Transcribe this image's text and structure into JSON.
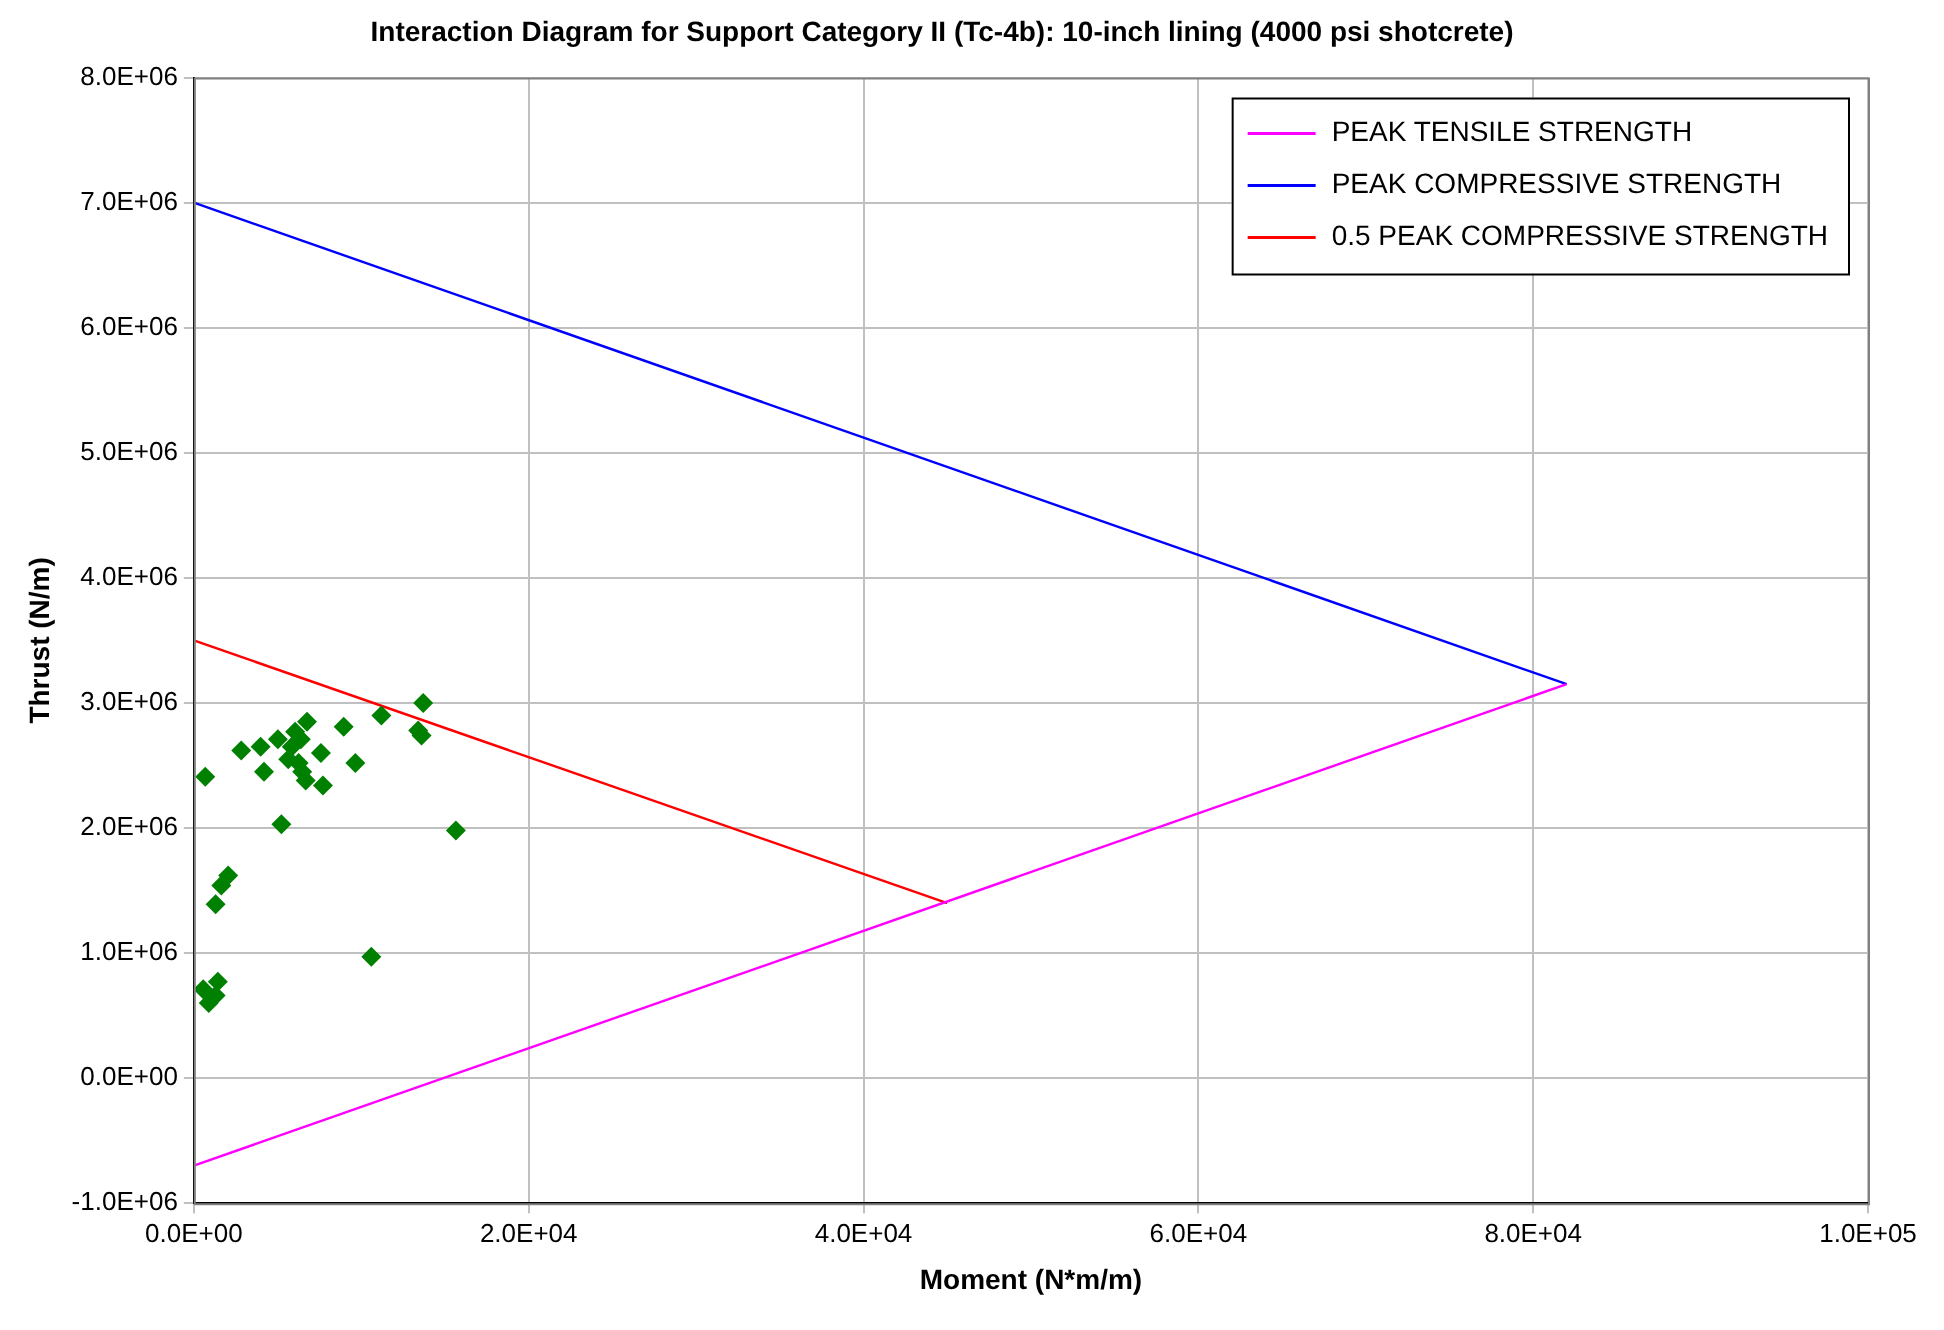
{
  "chart_data": {
    "type": "line",
    "title": "Interaction Diagram for Support Category II (Tc-4b): 10-inch lining (4000 psi shotcrete)",
    "xlabel": "Moment (N*m/m)",
    "ylabel": "Thrust (N/m)",
    "xlim": [
      0,
      100000
    ],
    "xticks": [
      {
        "value": 0,
        "label": "0.0E+00"
      },
      {
        "value": 20000,
        "label": "2.0E+04"
      },
      {
        "value": 40000,
        "label": "4.0E+04"
      },
      {
        "value": 60000,
        "label": "6.0E+04"
      },
      {
        "value": 80000,
        "label": "8.0E+04"
      },
      {
        "value": 100000,
        "label": "1.0E+05"
      }
    ],
    "ylim": [
      -1000000,
      8000000
    ],
    "yticks": [
      {
        "value": -1000000,
        "label": "-1.0E+06"
      },
      {
        "value": 0,
        "label": "0.0E+00"
      },
      {
        "value": 1000000,
        "label": "1.0E+06"
      },
      {
        "value": 2000000,
        "label": "2.0E+06"
      },
      {
        "value": 3000000,
        "label": "3.0E+06"
      },
      {
        "value": 4000000,
        "label": "4.0E+06"
      },
      {
        "value": 5000000,
        "label": "5.0E+06"
      },
      {
        "value": 6000000,
        "label": "6.0E+06"
      },
      {
        "value": 7000000,
        "label": "7.0E+06"
      },
      {
        "value": 8000000,
        "label": "8.0E+06"
      }
    ],
    "grid": true,
    "legend": "top right",
    "line_style": "solid",
    "series": [
      {
        "name": "PEAK TENSILE STRENGTH",
        "marker": "none",
        "color": "#ff00ff",
        "x": [
          0,
          82000
        ],
        "values": [
          -700000,
          3150000
        ]
      },
      {
        "name": "PEAK COMPRESSIVE STRENGTH",
        "marker": "none",
        "color": "#0000ff",
        "x": [
          0,
          82000
        ],
        "values": [
          7000000,
          3150000
        ]
      },
      {
        "name": "0.5 PEAK COMPRESSIVE STRENGTH",
        "marker": "none",
        "color": "#ff0000",
        "x": [
          0,
          45000
        ],
        "values": [
          3500000,
          1400000
        ]
      },
      {
        "type": "scatter",
        "marker": "diamond",
        "color": "#008000",
        "x": [
          13700,
          11200,
          8950,
          13400,
          13600,
          6760,
          6050,
          5020,
          3990,
          2830,
          6390,
          5850,
          5640,
          6260,
          6470,
          6680,
          7590,
          9650,
          7710,
          4190,
          680,
          5230,
          15650,
          2050,
          1640,
          1300,
          10600,
          1430,
          560,
          1300,
          890
        ],
        "values": [
          3000000,
          2900000,
          2810000,
          2780000,
          2740000,
          2850000,
          2770000,
          2710000,
          2650000,
          2620000,
          2710000,
          2650000,
          2550000,
          2520000,
          2450000,
          2380000,
          2600000,
          2520000,
          2340000,
          2450000,
          2410000,
          2030000,
          1980000,
          1620000,
          1540000,
          1390000,
          970000,
          770000,
          710000,
          660000,
          600000
        ]
      }
    ]
  }
}
